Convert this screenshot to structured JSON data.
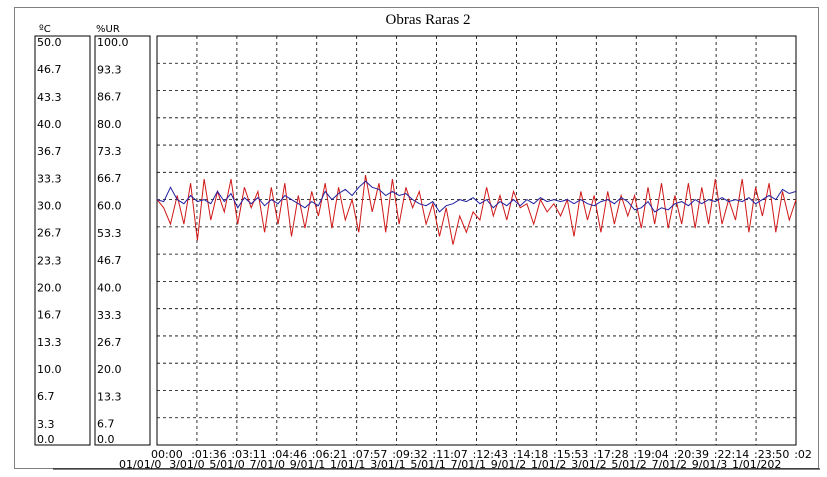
{
  "chart_data": {
    "type": "line",
    "title": "Obras Raras 2",
    "y_axes": [
      {
        "unit": "ºC",
        "range": [
          0.0,
          50.0
        ],
        "ticks": [
          "50.0",
          "46.7",
          "43.3",
          "40.0",
          "36.7",
          "33.3",
          "30.0",
          "26.7",
          "23.3",
          "20.0",
          "16.7",
          "13.3",
          "10.0",
          "6.7",
          "3.3",
          "0.0"
        ]
      },
      {
        "unit": "%UR",
        "range": [
          0.0,
          100.0
        ],
        "ticks": [
          "100.0",
          "93.3",
          "86.7",
          "80.0",
          "73.3",
          "66.7",
          "60.0",
          "53.3",
          "46.7",
          "40.0",
          "33.3",
          "26.7",
          "20.0",
          "13.3",
          "6.7",
          "0.0"
        ]
      }
    ],
    "x_ticks_time": [
      "00:00",
      ":01:36",
      ":03:11",
      ":04:46",
      ":06:21",
      ":07:57",
      ":09:32",
      ":11:07",
      ":12:43",
      ":14:18",
      ":15:53",
      ":17:28",
      ":19:04",
      ":20:39",
      ":22:14",
      ":23:50",
      ":02"
    ],
    "x_ticks_date": [
      "01/01/0",
      "3/01/0",
      "5/01/0",
      "7/01/0",
      "9/01/1",
      "1/01/1",
      "3/01/1",
      "5/01/1",
      "7/01/1",
      "9/01/2",
      "1/01/2",
      "3/01/2",
      "5/01/2",
      "7/01/2",
      "9/01/3",
      "1/01/202"
    ],
    "grid": true,
    "series": [
      {
        "color": "#d01818",
        "axis": "left",
        "unit": "ºC",
        "values": [
          30.0,
          29.0,
          27.0,
          30.5,
          27.0,
          32.0,
          25.0,
          32.5,
          27.5,
          31.0,
          28.5,
          32.5,
          27.0,
          31.5,
          29.0,
          31.0,
          26.0,
          31.5,
          27.0,
          32.0,
          25.5,
          30.5,
          26.5,
          31.0,
          28.0,
          32.0,
          26.5,
          31.5,
          27.5,
          30.0,
          26.0,
          33.0,
          28.5,
          32.0,
          26.0,
          32.5,
          27.0,
          31.5,
          29.0,
          31.0,
          27.0,
          29.5,
          25.5,
          29.0,
          24.5,
          28.0,
          26.0,
          28.5,
          27.5,
          31.5,
          28.0,
          30.5,
          27.5,
          31.0,
          29.0,
          29.5,
          27.0,
          30.0,
          28.5,
          29.5,
          28.0,
          30.0,
          25.5,
          31.0,
          27.5,
          30.5,
          26.0,
          31.0,
          27.0,
          30.5,
          28.0,
          30.5,
          26.5,
          31.5,
          27.0,
          32.0,
          26.5,
          30.5,
          27.0,
          32.0,
          26.5,
          31.5,
          27.0,
          32.5,
          27.0,
          30.0,
          27.5,
          32.5,
          26.0,
          31.5,
          28.0,
          32.0,
          26.0,
          31.0,
          27.5,
          30.0
        ]
      },
      {
        "color": "#2020a0",
        "axis": "right",
        "unit": "%UR",
        "values": [
          60.0,
          59.5,
          63.0,
          60.0,
          59.0,
          61.0,
          59.5,
          60.0,
          59.0,
          62.0,
          59.5,
          61.5,
          58.0,
          60.5,
          59.0,
          60.5,
          58.5,
          60.0,
          59.0,
          61.0,
          60.0,
          59.0,
          58.0,
          59.5,
          58.5,
          62.0,
          60.0,
          61.5,
          62.5,
          61.0,
          63.0,
          64.5,
          63.0,
          62.5,
          61.0,
          62.0,
          61.0,
          61.5,
          60.0,
          59.0,
          58.5,
          59.5,
          57.0,
          58.5,
          59.0,
          60.0,
          59.5,
          60.5,
          59.0,
          60.0,
          58.0,
          59.5,
          58.5,
          60.0,
          58.5,
          60.0,
          59.0,
          60.5,
          59.5,
          60.0,
          59.5,
          60.0,
          59.0,
          60.0,
          59.0,
          58.5,
          59.5,
          60.0,
          59.0,
          60.5,
          59.5,
          57.5,
          58.0,
          59.5,
          57.0,
          58.0,
          57.5,
          59.0,
          59.5,
          58.5,
          60.0,
          59.0,
          60.0,
          59.5,
          60.5,
          59.5,
          60.0,
          59.5,
          60.5,
          59.0,
          60.0,
          61.0,
          60.0,
          62.5,
          61.5,
          62.0
        ]
      }
    ]
  }
}
